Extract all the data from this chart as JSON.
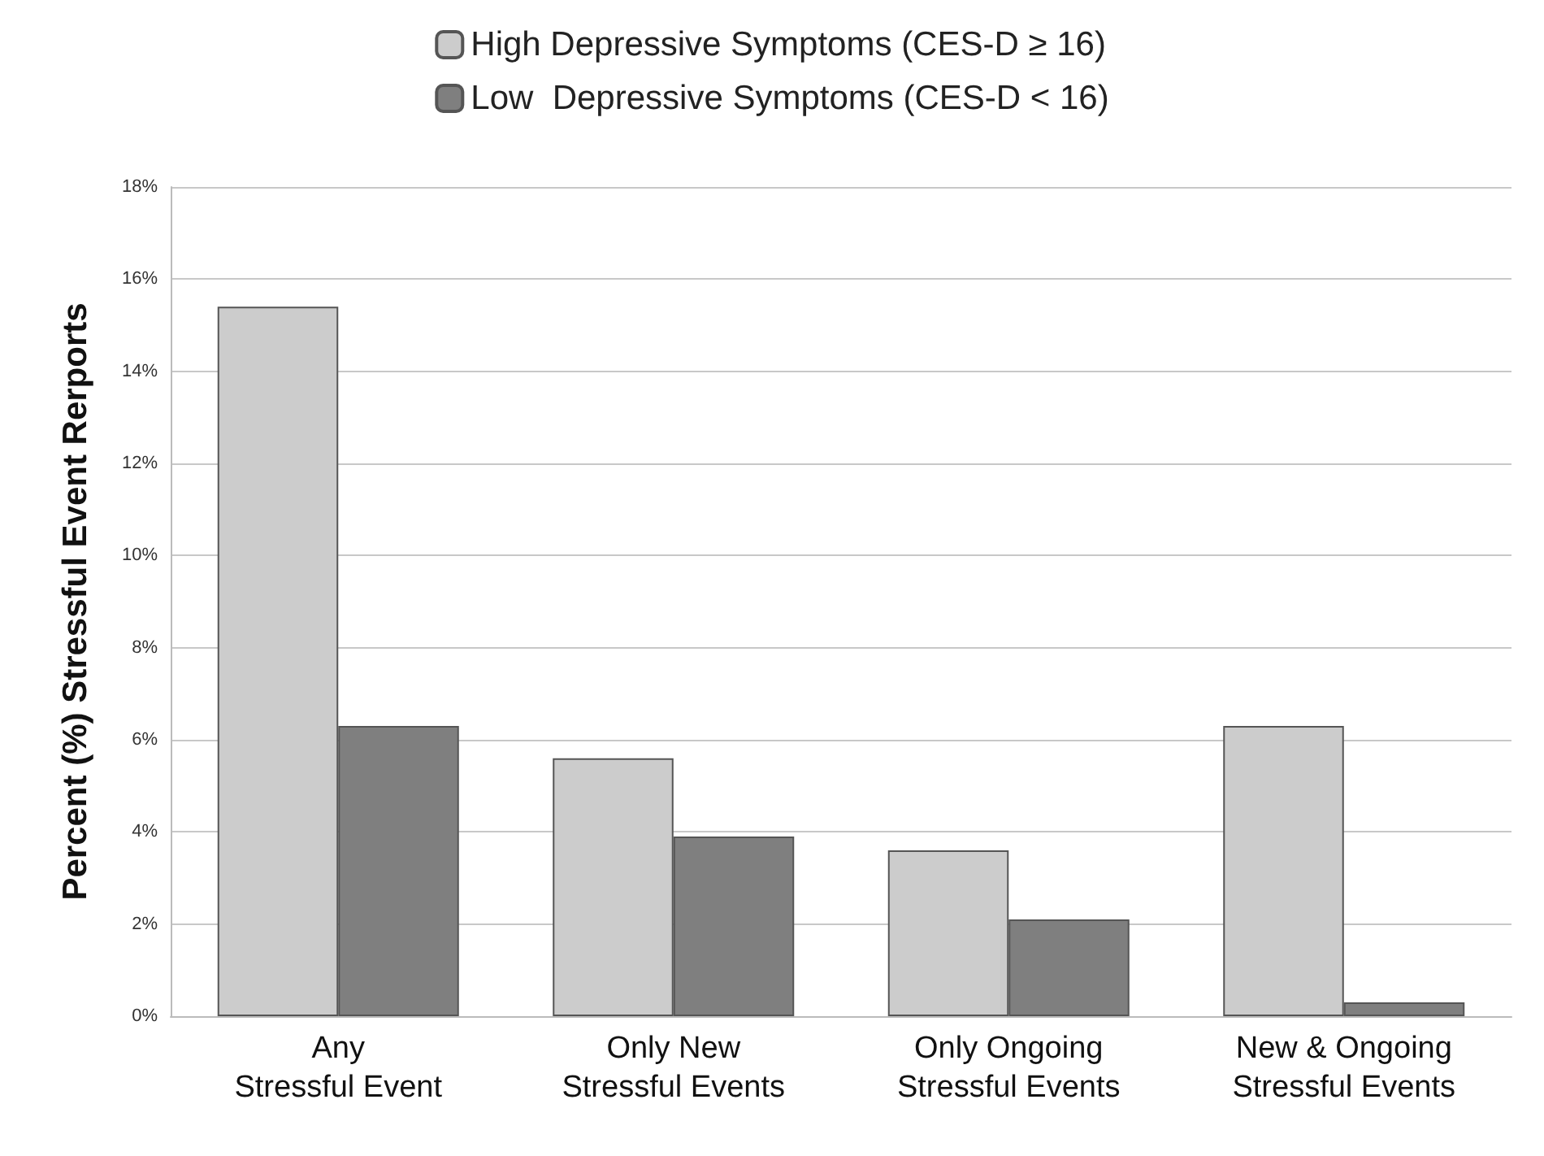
{
  "chart_data": {
    "type": "bar",
    "ylabel": "Percent (%) Stressful Event Rerports",
    "categories": [
      "Any\nStressful Event",
      "Only New\nStressful Events",
      "Only Ongoing\nStressful Events",
      "New & Ongoing\nStressful Events"
    ],
    "series": [
      {
        "name": "High Depressive Symptoms (CES-D ≥ 16)",
        "color": "#cccccc",
        "values": [
          15.4,
          5.6,
          3.6,
          6.3
        ]
      },
      {
        "name": "Low  Depressive Symptoms (CES-D < 16)",
        "color": "#7f7f7f",
        "values": [
          6.3,
          3.9,
          2.1,
          0.3
        ]
      }
    ],
    "ylim": [
      0,
      18
    ],
    "yticks": [
      {
        "value": 0,
        "label": "0%"
      },
      {
        "value": 2,
        "label": "2%"
      },
      {
        "value": 4,
        "label": "4%"
      },
      {
        "value": 6,
        "label": "6%"
      },
      {
        "value": 8,
        "label": "8%"
      },
      {
        "value": 10,
        "label": "10%"
      },
      {
        "value": 12,
        "label": "12%"
      },
      {
        "value": 14,
        "label": "14%"
      },
      {
        "value": 16,
        "label": "16%"
      },
      {
        "value": 18,
        "label": "18%"
      }
    ],
    "grid": "y",
    "legend": "top"
  }
}
